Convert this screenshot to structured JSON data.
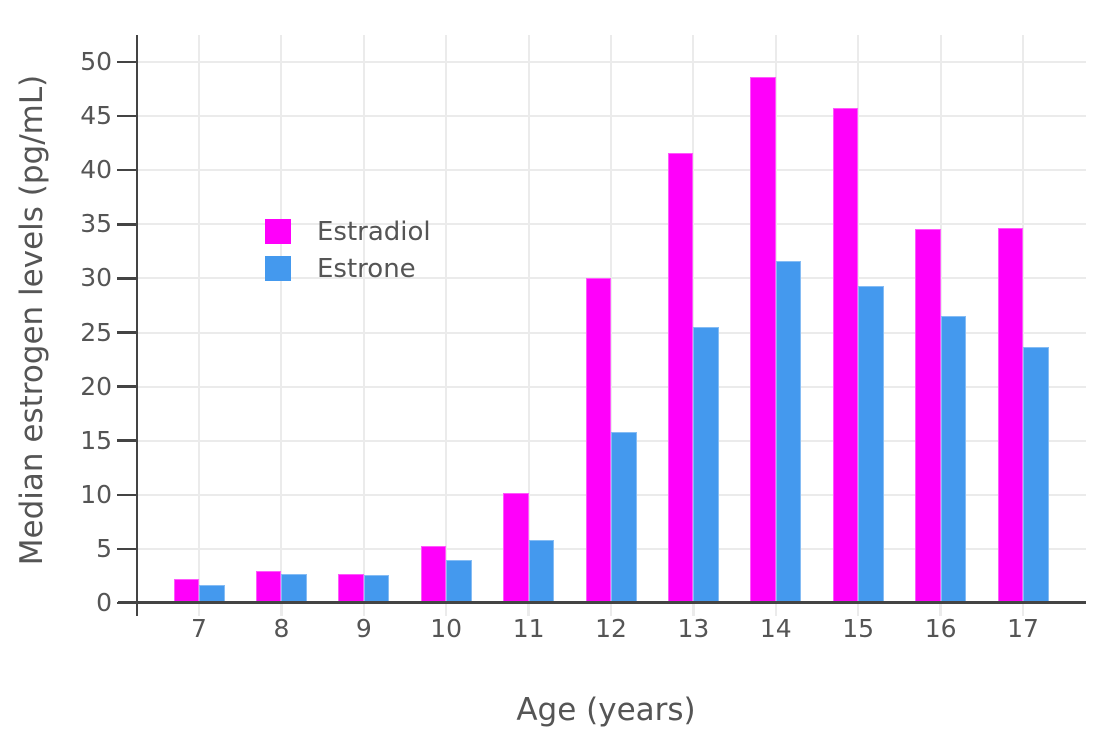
{
  "chart_data": {
    "type": "bar",
    "bar_mode": "grouped",
    "title": "",
    "xlabel": "Age (years)",
    "ylabel": "Median estrogen levels (pg/mL)",
    "categories": [
      "7",
      "8",
      "9",
      "10",
      "11",
      "12",
      "13",
      "14",
      "15",
      "16",
      "17"
    ],
    "series": [
      {
        "name": "Estradiol",
        "color": "#ff00fa",
        "values": [
          2.2,
          3.0,
          2.7,
          5.3,
          10.2,
          30.0,
          41.6,
          48.6,
          45.8,
          34.6,
          34.7
        ]
      },
      {
        "name": "Estrone",
        "color": "#4499ee",
        "values": [
          1.7,
          2.7,
          2.6,
          4.0,
          5.8,
          15.8,
          25.5,
          31.6,
          29.3,
          26.5,
          23.7
        ]
      }
    ],
    "yticks": [
      0,
      5,
      10,
      15,
      20,
      25,
      30,
      35,
      40,
      45,
      50
    ],
    "ylim": [
      0,
      52.5
    ],
    "grid": true,
    "legend_position": "inside-upper-left",
    "colors": {
      "background": "#ffffff",
      "gridline": "#ebebeb",
      "axis_line": "#444444",
      "text": "#555555"
    }
  }
}
